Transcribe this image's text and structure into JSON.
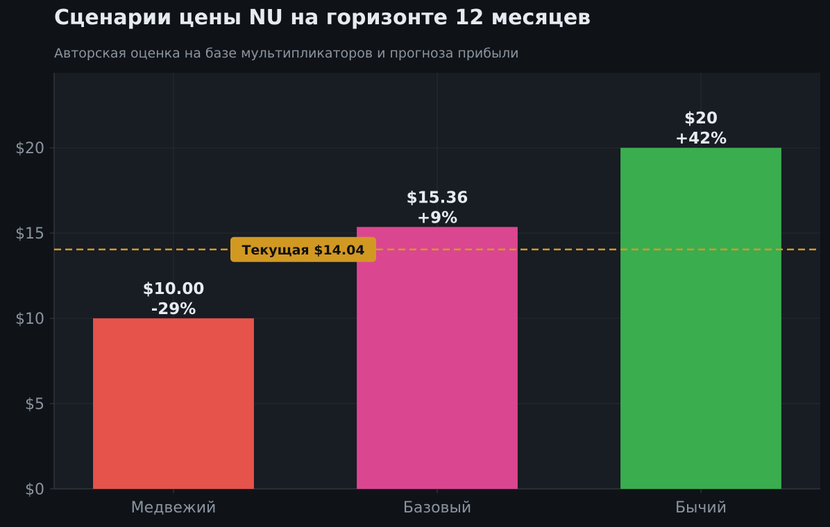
{
  "colors": {
    "background": "#0f1318",
    "plot_background": "#181c23",
    "grid": "#262b33",
    "axis_text": "#8b949e",
    "title_text": "#e6ebf1",
    "reference_line": "#d29922",
    "reference_text": "#111111"
  },
  "chart_data": {
    "type": "bar",
    "title": "Сценарии цены NU на горизонте 12 месяцев",
    "subtitle": "Авторская оценка на базе мультипликаторов и прогноза прибыли",
    "categories": [
      "Медвежий",
      "Базовый",
      "Бычий"
    ],
    "values": [
      10.0,
      15.36,
      20.0
    ],
    "bar_colors": [
      "#e5534b",
      "#db4690",
      "#3aad4f"
    ],
    "value_labels": [
      "$10.00",
      "$15.36",
      "$20"
    ],
    "change_labels": [
      "-29%",
      "+9%",
      "+42%"
    ],
    "ylim": [
      0,
      24.4
    ],
    "yticks": [
      0,
      5,
      10,
      15,
      20
    ],
    "ytick_labels": [
      "$0",
      "$5",
      "$10",
      "$15",
      "$20"
    ],
    "grid": true,
    "reference_line": {
      "value": 14.04,
      "label": "Текущая $14.04",
      "style": "dashed"
    }
  }
}
